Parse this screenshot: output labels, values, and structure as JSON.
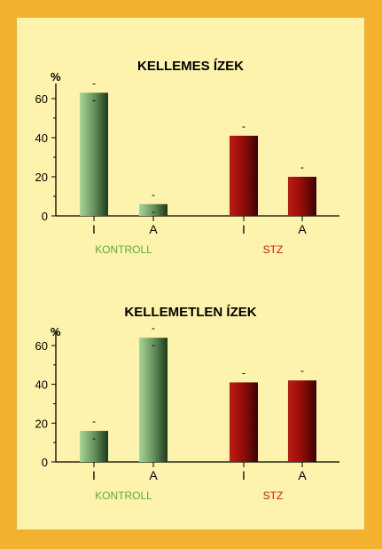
{
  "colors": {
    "border": "#f2b12f",
    "background": "#fdf3ad",
    "kontroll_label": "#5aaa3c",
    "stz_label": "#c8180f"
  },
  "chart_data": [
    {
      "type": "bar",
      "title": "KELLEMES ÍZEK",
      "unit_label": "%",
      "categories": [
        "I",
        "A",
        "I",
        "A"
      ],
      "groups": [
        {
          "name": "KONTROLL",
          "color_key": "kontroll"
        },
        {
          "name": "STZ",
          "color_key": "stz"
        }
      ],
      "values": [
        63,
        6,
        41,
        20
      ],
      "ylim": [
        0,
        65
      ],
      "yticks": [
        0,
        20,
        40,
        60
      ],
      "error_marks": [
        "-",
        "-",
        "-",
        "-"
      ]
    },
    {
      "type": "bar",
      "title": "KELLEMETLEN ÍZEK",
      "unit_label": "%",
      "categories": [
        "I",
        "A",
        "I",
        "A"
      ],
      "groups": [
        {
          "name": "KONTROLL",
          "color_key": "kontroll"
        },
        {
          "name": "STZ",
          "color_key": "stz"
        }
      ],
      "values": [
        16,
        64,
        41,
        42
      ],
      "ylim": [
        0,
        65
      ],
      "yticks": [
        0,
        20,
        40,
        60
      ],
      "error_marks": [
        "-",
        "-",
        "-",
        "-"
      ]
    }
  ]
}
